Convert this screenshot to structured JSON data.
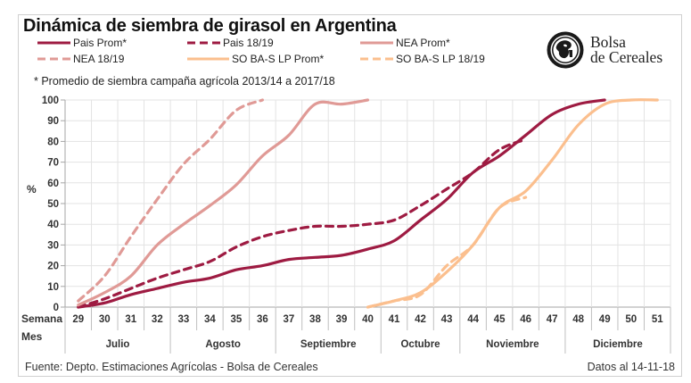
{
  "chart_data": {
    "type": "line",
    "title": "Dinámica de siembra de girasol en Argentina",
    "footnote": "* Promedio de siembra campaña agrícola 2013/14 a 2017/18",
    "ylabel": "%",
    "xlabel_week": "Semana",
    "xlabel_month": "Mes",
    "ylim": [
      0,
      100
    ],
    "yticks": [
      0,
      10,
      20,
      30,
      40,
      50,
      60,
      70,
      80,
      90,
      100
    ],
    "grid": true,
    "legend_position": "top",
    "x": [
      29,
      30,
      31,
      32,
      33,
      34,
      35,
      36,
      37,
      38,
      39,
      40,
      41,
      42,
      43,
      44,
      45,
      46,
      47,
      48,
      49,
      50,
      51
    ],
    "months": [
      {
        "label": "Julio",
        "weeks": [
          29,
          32
        ]
      },
      {
        "label": "Agosto",
        "weeks": [
          33,
          36
        ]
      },
      {
        "label": "Septiembre",
        "weeks": [
          37,
          40
        ]
      },
      {
        "label": "Octubre",
        "weeks": [
          41,
          43
        ]
      },
      {
        "label": "Noviembre",
        "weeks": [
          44,
          47
        ]
      },
      {
        "label": "Diciembre",
        "weeks": [
          48,
          51
        ]
      }
    ],
    "series": [
      {
        "name": "Pais Prom*",
        "color": "#9e1b42",
        "dashed": false,
        "start_week": 29,
        "values": [
          0,
          2,
          6,
          9,
          12,
          14,
          18,
          20,
          23,
          24,
          25,
          28,
          32,
          42,
          52,
          65,
          73,
          83,
          93,
          98,
          100
        ]
      },
      {
        "name": "Pais 18/19",
        "color": "#9e1b42",
        "dashed": true,
        "start_week": 29,
        "values": [
          0,
          4,
          9,
          14,
          18,
          22,
          29,
          34,
          37,
          39,
          39,
          40,
          42,
          49,
          57,
          65,
          76,
          81
        ]
      },
      {
        "name": "NEA Prom*",
        "color": "#e09a96",
        "dashed": false,
        "start_week": 29,
        "values": [
          1,
          7,
          15,
          30,
          40,
          49,
          59,
          73,
          83,
          98,
          98,
          100
        ]
      },
      {
        "name": "NEA 18/19",
        "color": "#e09a96",
        "dashed": true,
        "start_week": 29,
        "values": [
          3,
          15,
          34,
          52,
          69,
          81,
          95,
          100
        ]
      },
      {
        "name": "SO BA-S LP Prom*",
        "color": "#fbbf8e",
        "dashed": false,
        "start_week": 40,
        "values": [
          0,
          3,
          7,
          17,
          30,
          48,
          56,
          71,
          88,
          98,
          100,
          100
        ]
      },
      {
        "name": "SO BA-S LP 18/19",
        "color": "#fbbf8e",
        "dashed": true,
        "start_week": 40,
        "values": [
          0,
          3,
          6,
          20,
          30,
          48,
          53
        ]
      }
    ]
  },
  "logo": {
    "line1": "Bolsa",
    "line2": "de Cereales",
    "icon": "bolsa-de-cereales-seal-icon"
  },
  "source": "Fuente: Depto. Estimaciones Agrícolas - Bolsa de Cereales",
  "date": "Datos al 14-11-18"
}
